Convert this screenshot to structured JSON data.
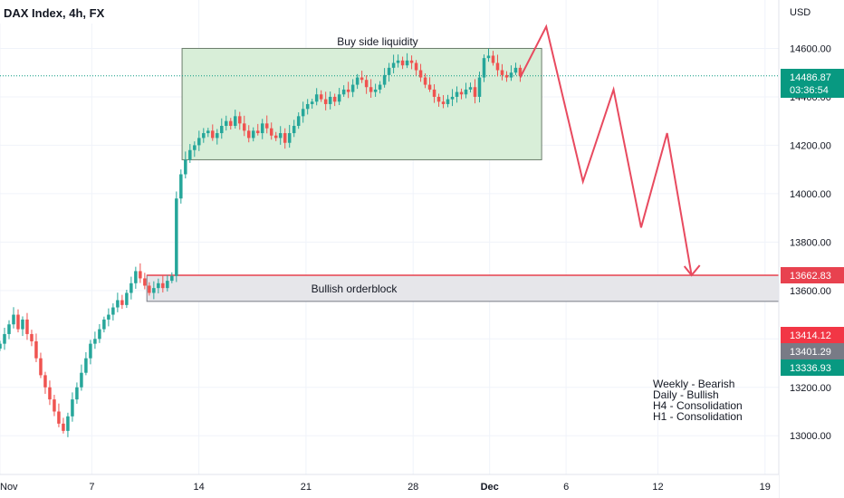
{
  "header": {
    "title": "DAX Index, 4h, FX"
  },
  "axis": {
    "unit_label": "USD"
  },
  "price_labels": {
    "current_price": "14486.87",
    "countdown": "03:36:54",
    "orderblock_level": "13662.83",
    "level_a": "13414.12",
    "level_b": "13401.29",
    "level_c": "13336.93"
  },
  "annotations": {
    "buy_side_liquidity": "Buy side liquidity",
    "bullish_orderblock": "Bullish orderblock",
    "bias_notes": [
      "Weekly - Bearish",
      "Daily - Bullish",
      "H4 - Consolidation",
      "H1 - Consolidation"
    ]
  },
  "colors": {
    "up": "#26a69a",
    "down": "#ef5350",
    "projection": "#e84a5f",
    "liquidity_fill": "#d8eed8",
    "orderblock_line": "#e8424f",
    "current_label": "#089981",
    "level_b_label": "#787b86"
  },
  "chart_data": {
    "type": "candlestick",
    "ylim": [
      12840,
      14800
    ],
    "yticks": [
      13000,
      13200,
      13400,
      13600,
      13800,
      14000,
      14200,
      14400,
      14600
    ],
    "ytick_labels": [
      "13000.00",
      "13200.00",
      "13400.00",
      "13600.00",
      "13800.00",
      "14000.00",
      "14200.00",
      "14400.00",
      "14600.00"
    ],
    "x_tick_labels": [
      "Nov",
      "7",
      "14",
      "21",
      "28",
      "Dec",
      "6",
      "12",
      "19"
    ],
    "x_tick_days": [
      1,
      7,
      14,
      21,
      28,
      33,
      38,
      44,
      51
    ],
    "x_range_days": [
      1,
      51.9
    ],
    "buy_side_liquidity_zone": {
      "day_start": 12.9,
      "day_end": 36.4,
      "low": 14140,
      "high": 14600
    },
    "bullish_orderblock_zone": {
      "day_start": 10.6,
      "day_end": 51.9,
      "low": 13555,
      "high": 13662.83
    },
    "projection_path": [
      {
        "day": 35.0,
        "price": 14480
      },
      {
        "day": 36.7,
        "price": 14690
      },
      {
        "day": 39.1,
        "price": 14050
      },
      {
        "day": 41.1,
        "price": 14430
      },
      {
        "day": 42.9,
        "price": 13860
      },
      {
        "day": 44.6,
        "price": 14250
      },
      {
        "day": 46.2,
        "price": 13662.83
      }
    ],
    "candle_closes": [
      13380,
      13420,
      13460,
      13500,
      13440,
      13480,
      13420,
      13390,
      13320,
      13250,
      13200,
      13150,
      13100,
      13050,
      13020,
      13080,
      13150,
      13200,
      13260,
      13320,
      13380,
      13400,
      13440,
      13480,
      13500,
      13530,
      13560,
      13540,
      13590,
      13630,
      13680,
      13650,
      13620,
      13590,
      13610,
      13630,
      13610,
      13640,
      13660,
      13980,
      14080,
      14140,
      14180,
      14200,
      14230,
      14250,
      14260,
      14230,
      14250,
      14280,
      14300,
      14280,
      14320,
      14290,
      14260,
      14230,
      14260,
      14250,
      14290,
      14270,
      14240,
      14230,
      14250,
      14210,
      14250,
      14280,
      14320,
      14350,
      14370,
      14380,
      14410,
      14390,
      14370,
      14400,
      14380,
      14410,
      14430,
      14420,
      14450,
      14480,
      14470,
      14440,
      14420,
      14430,
      14450,
      14490,
      14520,
      14540,
      14550,
      14530,
      14550,
      14540,
      14510,
      14480,
      14450,
      14430,
      14400,
      14380,
      14370,
      14390,
      14400,
      14420,
      14410,
      14430,
      14440,
      14400,
      14480,
      14560,
      14570,
      14540,
      14510,
      14490,
      14480,
      14500,
      14520,
      14486.87
    ]
  }
}
